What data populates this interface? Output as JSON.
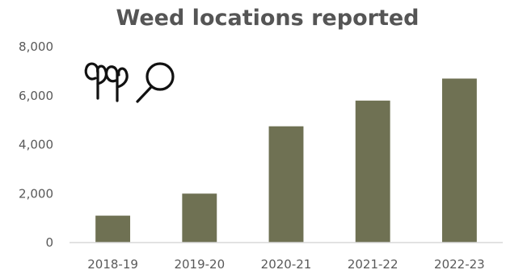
{
  "chart_data": {
    "type": "bar",
    "title": "Weed locations reported",
    "categories": [
      "2018-19",
      "2019-20",
      "2020-21",
      "2021-22",
      "2022-23"
    ],
    "values": [
      1100,
      2000,
      4750,
      5800,
      6700
    ],
    "ylim": [
      0,
      8000
    ],
    "yticks": [
      0,
      2000,
      4000,
      6000,
      8000
    ],
    "ytick_labels": [
      "0",
      "2,000",
      "4,000",
      "6,000",
      "8,000"
    ],
    "xlabel": "",
    "ylabel": "",
    "grid": false,
    "legend": "none",
    "bar_color": "#6f7153"
  },
  "decoration": {
    "icon": "weed-and-magnifier-icon"
  }
}
